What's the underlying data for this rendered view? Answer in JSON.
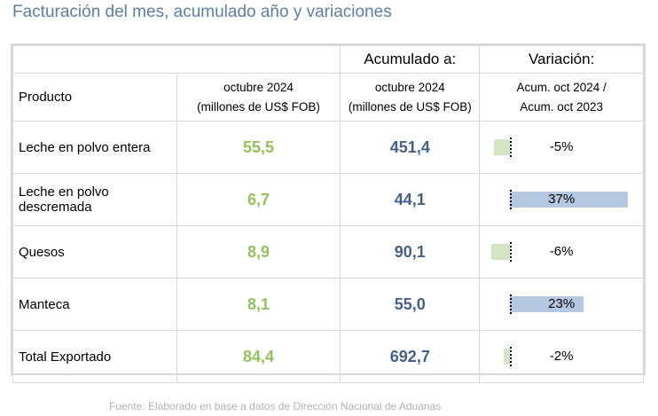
{
  "title": "Facturación del mes, acumulado año y variaciones",
  "header": {
    "acumulado_label": "Acumulado a:",
    "variacion_label": "Variación:",
    "producto_label": "Producto",
    "month_line1": "octubre 2024",
    "month_line2": "(millones de US$ FOB)",
    "acc_line1": "octubre 2024",
    "acc_line2": "(millones de US$ FOB)",
    "var_line1": "Acum. oct 2024 /",
    "var_line2": "Acum. oct 2023"
  },
  "rows": [
    {
      "product": "Leche en polvo entera",
      "month": "55,5",
      "acc": "451,4",
      "var_label": "-5%",
      "var_value": -5
    },
    {
      "product": "Leche en polvo descremada",
      "month": "6,7",
      "acc": "44,1",
      "var_label": "37%",
      "var_value": 37
    },
    {
      "product": "Quesos",
      "month": "8,9",
      "acc": "90,1",
      "var_label": "-6%",
      "var_value": -6
    },
    {
      "product": "Manteca",
      "month": "8,1",
      "acc": "55,0",
      "var_label": "23%",
      "var_value": 23
    },
    {
      "product": "Total Exportado",
      "month": "84,4",
      "acc": "692,7",
      "var_label": "-2%",
      "var_value": -2
    }
  ],
  "colors": {
    "month_value": "#92c35a",
    "acc_value": "#44618c",
    "neg_bar": "#d3e5c2",
    "pos_bar": "#b4c8e2"
  },
  "footer": "Fuente: Elaborado en base a datos de Dirección Nacional de Aduanas"
}
